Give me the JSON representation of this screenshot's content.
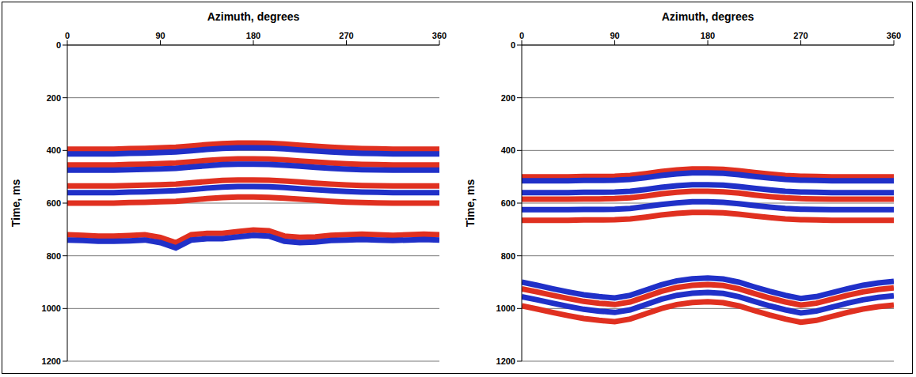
{
  "chart_data": [
    {
      "type": "line",
      "x_label": "Azimuth, degrees",
      "y_label": "Time, ms",
      "x": [
        0,
        15,
        30,
        45,
        60,
        75,
        90,
        105,
        120,
        135,
        150,
        165,
        180,
        195,
        210,
        225,
        240,
        255,
        270,
        285,
        300,
        315,
        330,
        345,
        360
      ],
      "xlim": [
        0,
        360
      ],
      "xticks": [
        0,
        90,
        180,
        270,
        360
      ],
      "ylim": [
        1200,
        0
      ],
      "yticks": [
        0,
        200,
        400,
        600,
        800,
        1000,
        1200
      ],
      "grid": true,
      "series": [
        {
          "color": "#e03020",
          "line_style": "solid",
          "values": [
            395,
            395,
            395,
            395,
            393,
            392,
            390,
            388,
            383,
            378,
            374,
            372,
            372,
            373,
            376,
            380,
            384,
            388,
            391,
            393,
            394,
            395,
            395,
            395,
            395
          ]
        },
        {
          "color": "#2030c8",
          "line_style": "solid",
          "values": [
            413,
            413,
            413,
            413,
            411,
            410,
            408,
            406,
            401,
            396,
            392,
            390,
            390,
            391,
            394,
            398,
            402,
            406,
            409,
            411,
            412,
            413,
            413,
            413,
            413
          ]
        },
        {
          "color": "#e03020",
          "line_style": "solid",
          "values": [
            455,
            455,
            455,
            455,
            453,
            452,
            450,
            448,
            443,
            438,
            434,
            432,
            432,
            433,
            436,
            440,
            444,
            448,
            451,
            453,
            454,
            455,
            455,
            455,
            455
          ]
        },
        {
          "color": "#2030c8",
          "line_style": "solid",
          "values": [
            475,
            475,
            475,
            475,
            473,
            472,
            470,
            468,
            463,
            458,
            454,
            452,
            452,
            453,
            456,
            460,
            464,
            468,
            471,
            473,
            474,
            475,
            475,
            475,
            475
          ]
        },
        {
          "color": "#e03020",
          "line_style": "solid",
          "values": [
            535,
            535,
            535,
            535,
            533,
            532,
            530,
            528,
            523,
            518,
            514,
            512,
            512,
            513,
            516,
            520,
            524,
            528,
            531,
            533,
            534,
            535,
            535,
            535,
            535
          ]
        },
        {
          "color": "#2030c8",
          "line_style": "solid",
          "values": [
            560,
            560,
            560,
            560,
            558,
            557,
            555,
            553,
            548,
            543,
            539,
            537,
            537,
            538,
            541,
            545,
            549,
            553,
            556,
            558,
            559,
            560,
            560,
            560,
            560
          ]
        },
        {
          "color": "#e03020",
          "line_style": "solid",
          "values": [
            600,
            600,
            600,
            600,
            598,
            597,
            595,
            593,
            588,
            583,
            579,
            577,
            577,
            578,
            581,
            585,
            589,
            593,
            596,
            598,
            599,
            600,
            600,
            600,
            600
          ]
        },
        {
          "color": "#e03020",
          "line_style": "solid",
          "values": [
            720,
            722,
            725,
            725,
            723,
            720,
            730,
            750,
            720,
            715,
            715,
            708,
            702,
            705,
            725,
            730,
            728,
            722,
            720,
            718,
            720,
            722,
            720,
            718,
            720
          ]
        },
        {
          "color": "#2030c8",
          "line_style": "solid",
          "values": [
            740,
            742,
            745,
            745,
            743,
            740,
            750,
            770,
            740,
            735,
            735,
            728,
            722,
            725,
            745,
            750,
            748,
            742,
            740,
            738,
            740,
            742,
            740,
            738,
            740
          ]
        }
      ]
    },
    {
      "type": "line",
      "x_label": "Azimuth, degrees",
      "y_label": "Time, ms",
      "x": [
        0,
        15,
        30,
        45,
        60,
        75,
        90,
        105,
        120,
        135,
        150,
        165,
        180,
        195,
        210,
        225,
        240,
        255,
        270,
        285,
        300,
        315,
        330,
        345,
        360
      ],
      "xlim": [
        0,
        360
      ],
      "xticks": [
        0,
        90,
        180,
        270,
        360
      ],
      "ylim": [
        1200,
        0
      ],
      "yticks": [
        0,
        200,
        400,
        600,
        800,
        1000,
        1200
      ],
      "grid": true,
      "series": [
        {
          "color": "#e03020",
          "line_style": "solid",
          "values": [
            500,
            500,
            500,
            500,
            499,
            499,
            498,
            495,
            488,
            480,
            474,
            470,
            470,
            472,
            477,
            484,
            490,
            495,
            498,
            499,
            500,
            500,
            500,
            500,
            500
          ]
        },
        {
          "color": "#2030c8",
          "line_style": "solid",
          "values": [
            515,
            515,
            515,
            515,
            514,
            514,
            513,
            510,
            503,
            495,
            489,
            485,
            485,
            487,
            492,
            499,
            505,
            510,
            513,
            514,
            515,
            515,
            515,
            515,
            515
          ]
        },
        {
          "color": "#2030c8",
          "line_style": "solid",
          "values": [
            560,
            560,
            560,
            560,
            559,
            559,
            558,
            555,
            548,
            540,
            534,
            530,
            530,
            532,
            537,
            544,
            550,
            555,
            558,
            559,
            560,
            560,
            560,
            560,
            560
          ]
        },
        {
          "color": "#e03020",
          "line_style": "solid",
          "values": [
            585,
            585,
            585,
            585,
            584,
            584,
            583,
            580,
            573,
            565,
            559,
            555,
            555,
            557,
            562,
            569,
            575,
            580,
            583,
            584,
            585,
            585,
            585,
            585,
            585
          ]
        },
        {
          "color": "#2030c8",
          "line_style": "solid",
          "values": [
            625,
            625,
            625,
            625,
            624,
            624,
            623,
            620,
            613,
            605,
            599,
            595,
            595,
            597,
            602,
            609,
            615,
            620,
            623,
            624,
            625,
            625,
            625,
            625,
            625
          ]
        },
        {
          "color": "#e03020",
          "line_style": "solid",
          "values": [
            665,
            665,
            665,
            665,
            664,
            664,
            663,
            660,
            653,
            645,
            639,
            635,
            635,
            637,
            642,
            649,
            655,
            660,
            663,
            664,
            665,
            665,
            665,
            665,
            665
          ]
        },
        {
          "color": "#2030c8",
          "line_style": "solid",
          "values": [
            900,
            912,
            925,
            937,
            948,
            955,
            960,
            950,
            930,
            910,
            895,
            887,
            884,
            888,
            900,
            918,
            935,
            950,
            962,
            955,
            940,
            925,
            912,
            903,
            897
          ]
        },
        {
          "color": "#e03020",
          "line_style": "solid",
          "values": [
            925,
            937,
            950,
            962,
            973,
            980,
            985,
            975,
            955,
            935,
            920,
            912,
            909,
            913,
            925,
            943,
            960,
            975,
            987,
            980,
            965,
            950,
            937,
            928,
            922
          ]
        },
        {
          "color": "#2030c8",
          "line_style": "solid",
          "values": [
            955,
            967,
            980,
            992,
            1003,
            1010,
            1015,
            1005,
            985,
            965,
            950,
            942,
            939,
            943,
            955,
            973,
            990,
            1005,
            1017,
            1010,
            995,
            980,
            967,
            958,
            952
          ]
        },
        {
          "color": "#e03020",
          "line_style": "solid",
          "values": [
            990,
            1002,
            1015,
            1027,
            1038,
            1045,
            1050,
            1040,
            1020,
            1000,
            985,
            977,
            974,
            978,
            990,
            1008,
            1025,
            1040,
            1052,
            1045,
            1030,
            1015,
            1002,
            993,
            987
          ]
        }
      ]
    }
  ]
}
